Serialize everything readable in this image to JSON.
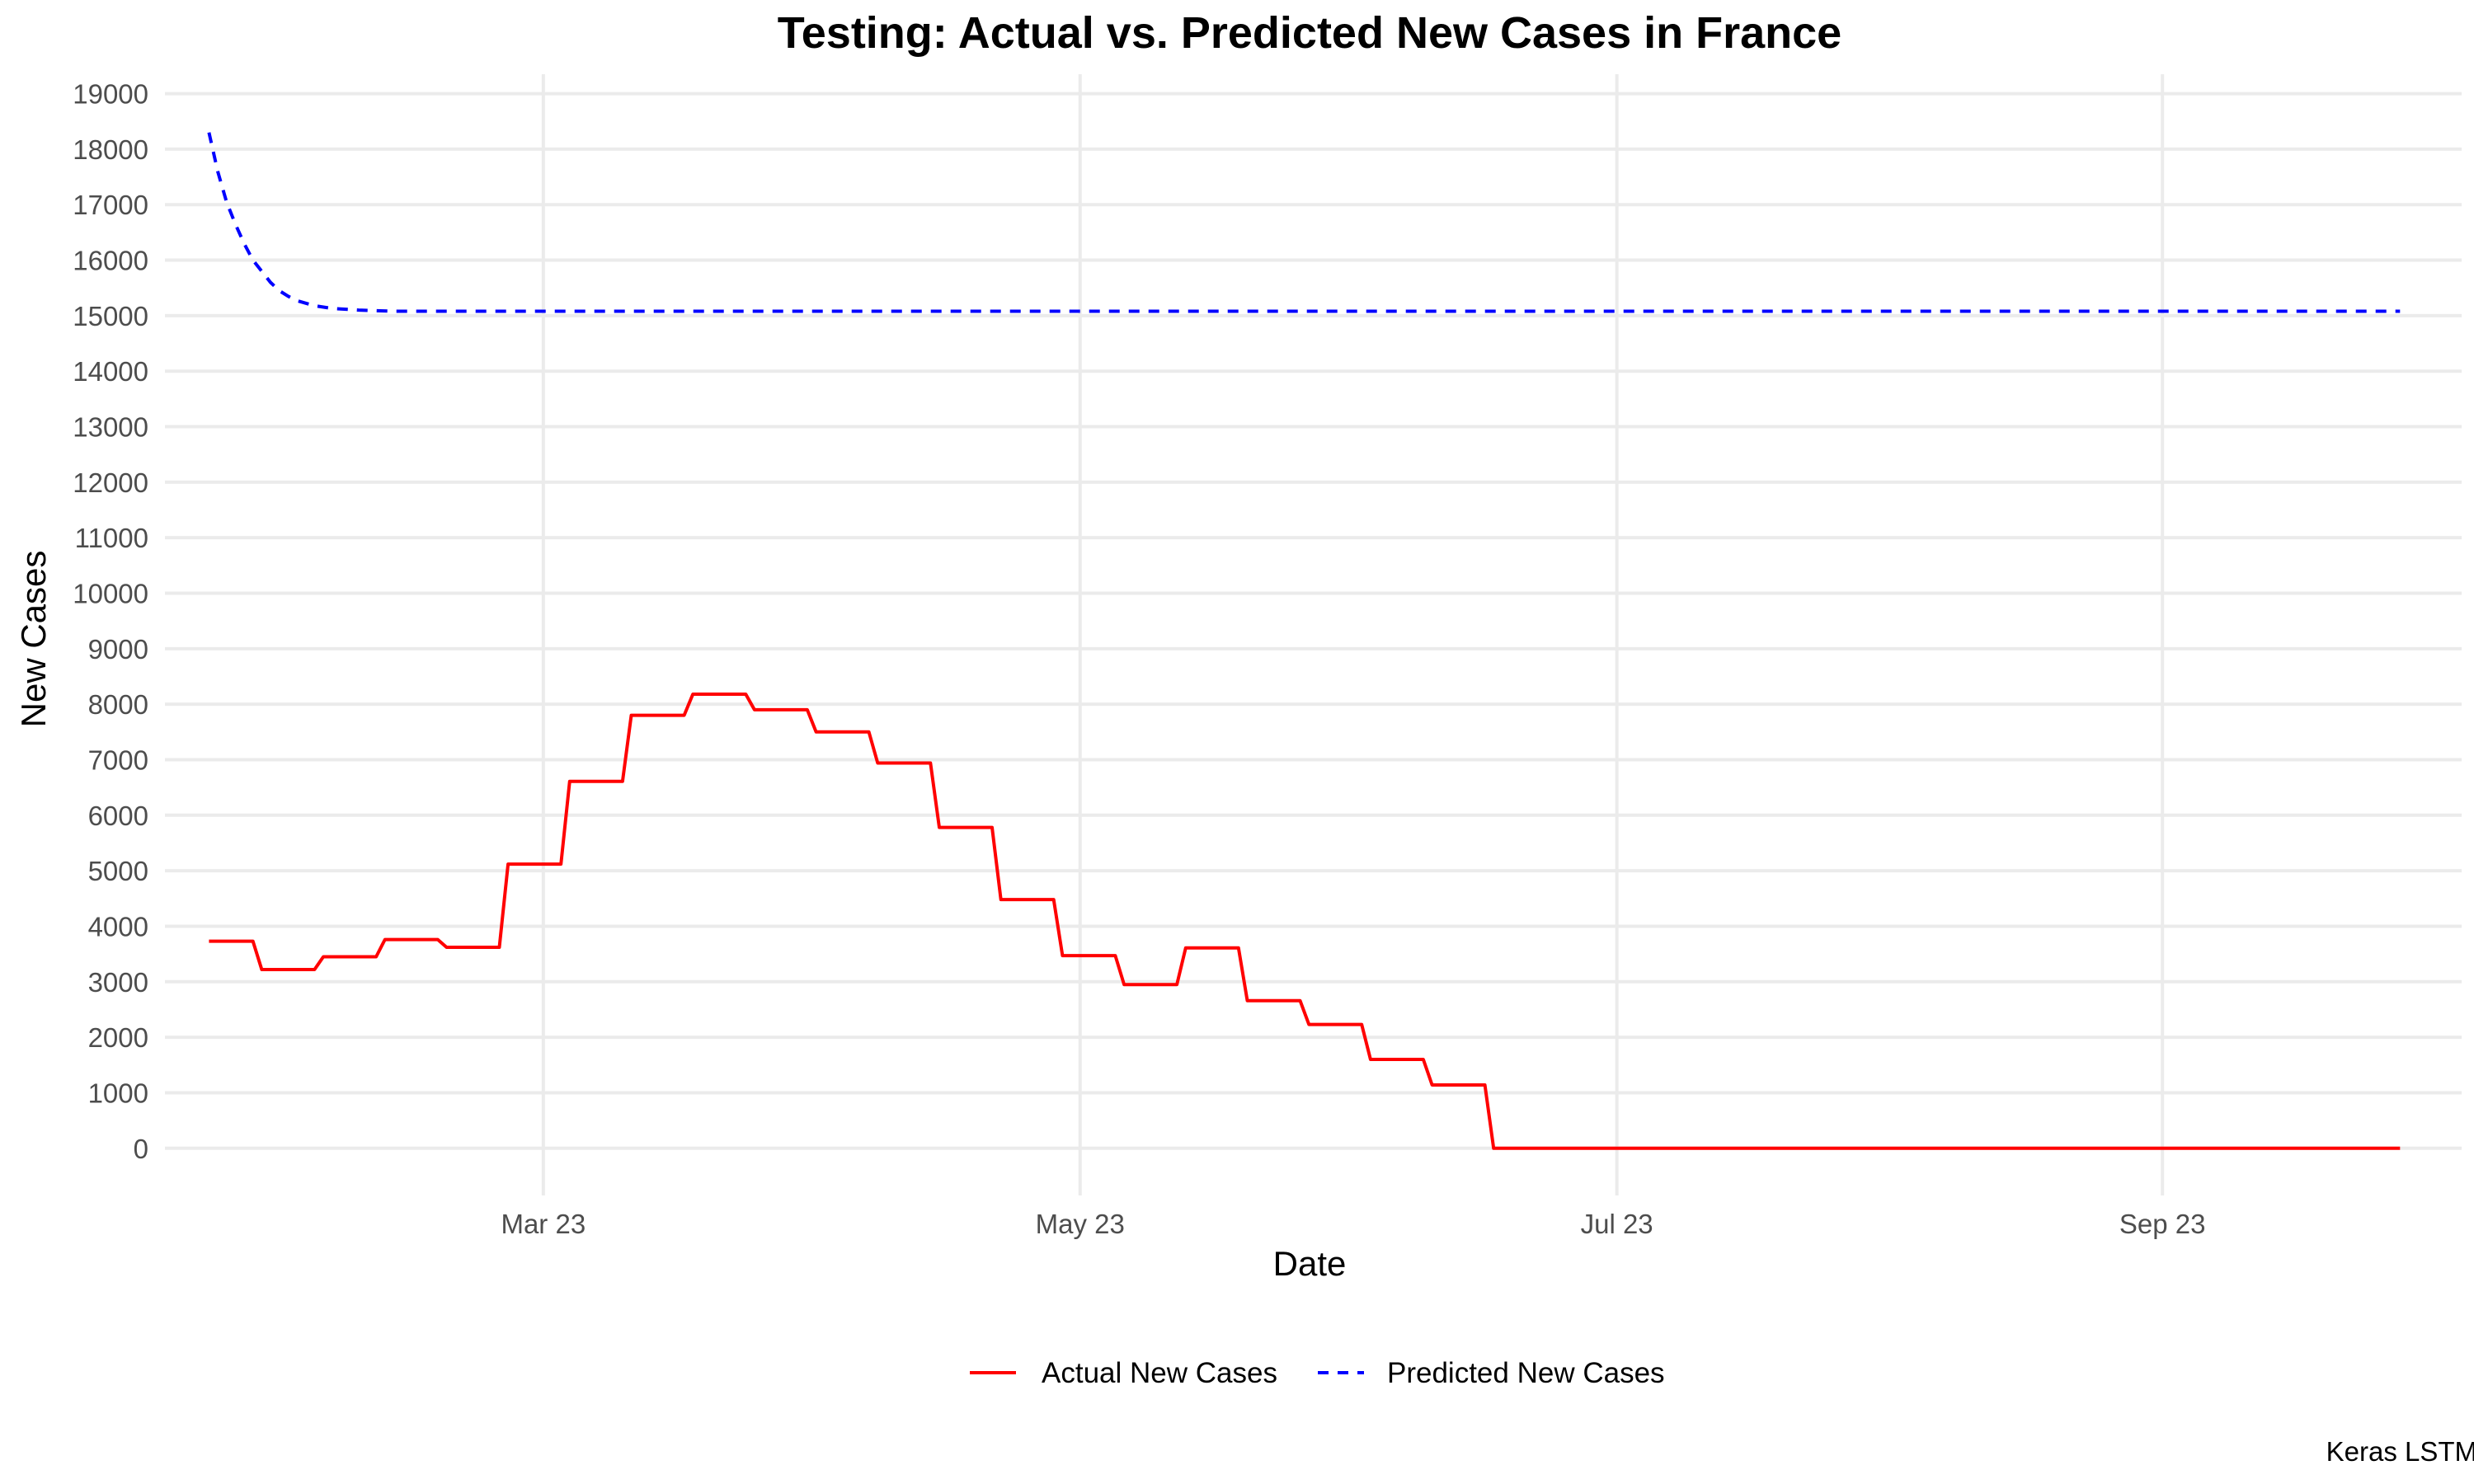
{
  "chart_data": {
    "type": "line",
    "title": "Testing: Actual vs. Predicted New Cases in France",
    "xlabel": "Date",
    "ylabel": "New Cases",
    "caption": "Keras LSTM",
    "x_range": [
      "2023-01-17",
      "2023-10-05"
    ],
    "x_ticks": [
      {
        "date": "2023-03-01",
        "label": "Mar 23"
      },
      {
        "date": "2023-05-01",
        "label": "May 23"
      },
      {
        "date": "2023-07-01",
        "label": "Jul 23"
      },
      {
        "date": "2023-09-01",
        "label": "Sep 23"
      }
    ],
    "ylim": [
      -850,
      19350
    ],
    "y_ticks": [
      0,
      1000,
      2000,
      3000,
      4000,
      5000,
      6000,
      7000,
      8000,
      9000,
      10000,
      11000,
      12000,
      13000,
      14000,
      15000,
      16000,
      17000,
      18000,
      19000
    ],
    "grid": true,
    "legend": "bottom",
    "series": [
      {
        "name": "Actual New Cases",
        "color": "#ff0000",
        "line_style": "solid",
        "points": [
          [
            "2023-01-22",
            3730
          ],
          [
            "2023-01-27",
            3730
          ],
          [
            "2023-01-28",
            3220
          ],
          [
            "2023-02-03",
            3220
          ],
          [
            "2023-02-04",
            3450
          ],
          [
            "2023-02-10",
            3450
          ],
          [
            "2023-02-11",
            3760
          ],
          [
            "2023-02-17",
            3760
          ],
          [
            "2023-02-18",
            3620
          ],
          [
            "2023-02-24",
            3620
          ],
          [
            "2023-02-25",
            5120
          ],
          [
            "2023-03-03",
            5120
          ],
          [
            "2023-03-04",
            6610
          ],
          [
            "2023-03-10",
            6610
          ],
          [
            "2023-03-11",
            7800
          ],
          [
            "2023-03-17",
            7800
          ],
          [
            "2023-03-18",
            8180
          ],
          [
            "2023-03-24",
            8180
          ],
          [
            "2023-03-25",
            7900
          ],
          [
            "2023-03-31",
            7900
          ],
          [
            "2023-04-01",
            7500
          ],
          [
            "2023-04-07",
            7500
          ],
          [
            "2023-04-08",
            6940
          ],
          [
            "2023-04-14",
            6940
          ],
          [
            "2023-04-15",
            5780
          ],
          [
            "2023-04-21",
            5780
          ],
          [
            "2023-04-22",
            4480
          ],
          [
            "2023-04-28",
            4480
          ],
          [
            "2023-04-29",
            3470
          ],
          [
            "2023-05-05",
            3470
          ],
          [
            "2023-05-06",
            2950
          ],
          [
            "2023-05-12",
            2950
          ],
          [
            "2023-05-13",
            3610
          ],
          [
            "2023-05-19",
            3610
          ],
          [
            "2023-05-20",
            2660
          ],
          [
            "2023-05-26",
            2660
          ],
          [
            "2023-05-27",
            2230
          ],
          [
            "2023-06-02",
            2230
          ],
          [
            "2023-06-03",
            1600
          ],
          [
            "2023-06-09",
            1600
          ],
          [
            "2023-06-10",
            1140
          ],
          [
            "2023-06-16",
            1140
          ],
          [
            "2023-06-17",
            0
          ],
          [
            "2023-09-28",
            0
          ]
        ]
      },
      {
        "name": "Predicted New Cases",
        "color": "#0000ff",
        "line_style": "dashed",
        "points": [
          [
            "2023-01-22",
            18300
          ],
          [
            "2023-01-23",
            17600
          ],
          [
            "2023-01-24",
            17050
          ],
          [
            "2023-01-25",
            16650
          ],
          [
            "2023-01-26",
            16300
          ],
          [
            "2023-01-27",
            16000
          ],
          [
            "2023-01-28",
            15800
          ],
          [
            "2023-01-29",
            15600
          ],
          [
            "2023-01-30",
            15450
          ],
          [
            "2023-01-31",
            15350
          ],
          [
            "2023-02-01",
            15270
          ],
          [
            "2023-02-03",
            15180
          ],
          [
            "2023-02-05",
            15130
          ],
          [
            "2023-02-08",
            15100
          ],
          [
            "2023-02-12",
            15080
          ],
          [
            "2023-09-28",
            15080
          ]
        ]
      }
    ]
  }
}
